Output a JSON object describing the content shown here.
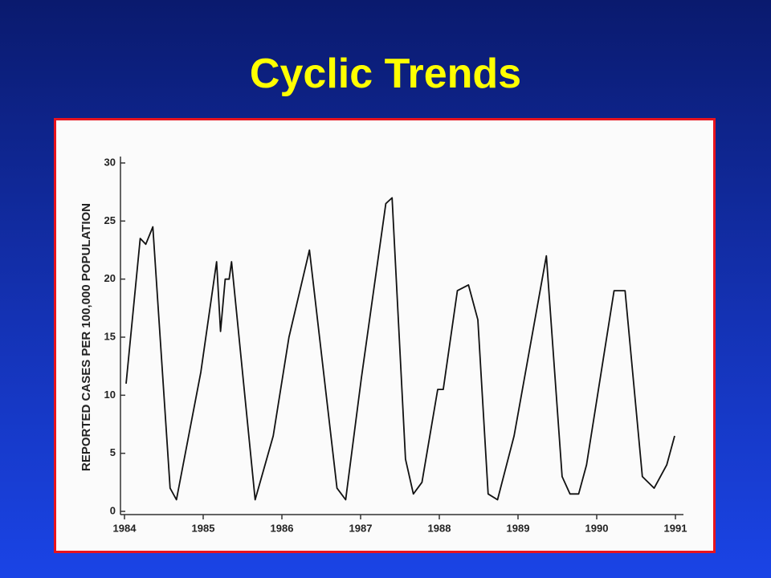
{
  "chart_data": {
    "type": "line",
    "title": "Cyclic Trends",
    "y_label": "REPORTED CASES PER 100,000 POPULATION",
    "x": [
      1984.02,
      1984.2,
      1984.27,
      1984.36,
      1984.58,
      1984.66,
      1984.97,
      1985.17,
      1985.22,
      1985.28,
      1985.33,
      1985.36,
      1985.66,
      1985.89,
      1986.09,
      1986.35,
      1986.7,
      1986.81,
      1987.01,
      1987.32,
      1987.4,
      1987.57,
      1987.67,
      1987.78,
      1987.98,
      1988.05,
      1988.23,
      1988.37,
      1988.49,
      1988.62,
      1988.74,
      1988.95,
      1989.36,
      1989.56,
      1989.66,
      1989.77,
      1989.87,
      1990.22,
      1990.36,
      1990.58,
      1990.73,
      1990.89,
      1990.99
    ],
    "values": [
      11,
      23.5,
      23,
      24.5,
      2,
      1,
      12,
      21.5,
      15.5,
      20,
      20,
      21.5,
      1,
      6.5,
      15,
      22.5,
      2,
      1,
      11.5,
      26.5,
      27,
      4.5,
      1.5,
      2.5,
      10.5,
      10.5,
      19,
      19.5,
      16.5,
      1.5,
      1,
      6.5,
      22,
      3,
      1.5,
      1.5,
      4,
      19,
      19,
      3,
      2,
      4,
      6.5
    ],
    "color": "#111111",
    "xlim": [
      1984,
      1991
    ],
    "xticks": [
      1984,
      1985,
      1986,
      1987,
      1988,
      1989,
      1990,
      1991
    ],
    "ylim": [
      0,
      30
    ],
    "yticks": [
      0,
      5,
      10,
      15,
      20,
      25,
      30
    ]
  }
}
